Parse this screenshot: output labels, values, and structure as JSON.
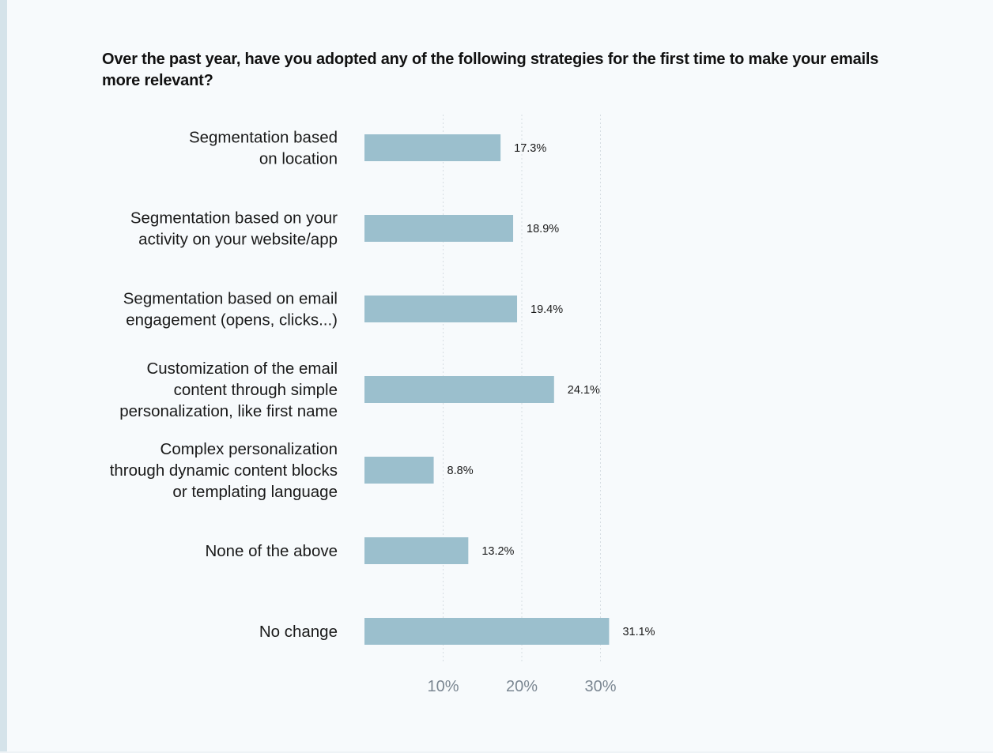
{
  "chart_data": {
    "type": "bar",
    "orientation": "horizontal",
    "title": "Over the past year, have you adopted any of the following strategies for the first time to make your emails more relevant?",
    "categories": [
      [
        "Segmentation based",
        "on location"
      ],
      [
        "Segmentation based on your",
        "activity on your website/app"
      ],
      [
        "Segmentation based on email",
        "engagement (opens, clicks...)"
      ],
      [
        "Customization of the email",
        "content through simple",
        "personalization, like first name"
      ],
      [
        "Complex personalization",
        "through dynamic content blocks",
        "or templating language"
      ],
      [
        "None of the above"
      ],
      [
        "No change"
      ]
    ],
    "values": [
      17.3,
      18.9,
      19.4,
      24.1,
      8.8,
      13.2,
      31.1
    ],
    "value_labels": [
      "17.3%",
      "18.9%",
      "19.4%",
      "24.1%",
      "8.8%",
      "13.2%",
      "31.1%"
    ],
    "x_ticks": [
      10,
      20,
      30
    ],
    "x_tick_labels": [
      "10%",
      "20%",
      "30%"
    ],
    "xlim": [
      0,
      35
    ],
    "grid": "vertical dotted",
    "bar_color": "#9bbfcd"
  }
}
